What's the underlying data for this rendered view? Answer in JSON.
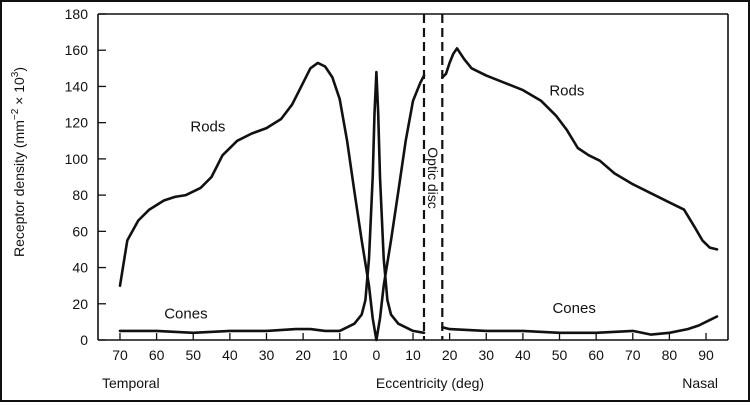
{
  "chart_data": {
    "type": "line",
    "ylabel_main": "Receptor density (mm",
    "ylabel_exp1": "−2",
    "ylabel_times": " × 10",
    "ylabel_exp2": "3",
    "ylabel_close": ")",
    "xlabel": "Eccentricity (deg)",
    "left_region_label": "Temporal",
    "right_region_label": "Nasal",
    "disc_label": "Optic disc",
    "ylim": [
      0,
      180
    ],
    "y_ticks": [
      0,
      20,
      40,
      60,
      80,
      100,
      120,
      140,
      160,
      180
    ],
    "x_ticks": [
      {
        "x": -70,
        "label": "70"
      },
      {
        "x": -60,
        "label": "60"
      },
      {
        "x": -50,
        "label": "50"
      },
      {
        "x": -40,
        "label": "40"
      },
      {
        "x": -30,
        "label": "30"
      },
      {
        "x": -20,
        "label": "20"
      },
      {
        "x": -10,
        "label": "10"
      },
      {
        "x": 0,
        "label": "0"
      },
      {
        "x": 10,
        "label": "10"
      },
      {
        "x": 20,
        "label": "20"
      },
      {
        "x": 30,
        "label": "30"
      },
      {
        "x": 40,
        "label": "40"
      },
      {
        "x": 50,
        "label": "50"
      },
      {
        "x": 60,
        "label": "60"
      },
      {
        "x": 70,
        "label": "70"
      },
      {
        "x": 80,
        "label": "80"
      },
      {
        "x": 90,
        "label": "90"
      }
    ],
    "xlim": [
      -76,
      96
    ],
    "optic_disc": [
      13,
      18
    ],
    "series": [
      {
        "name": "Rods",
        "label_positions": [
          [
            -46,
            115
          ],
          [
            52,
            135
          ]
        ],
        "segments": [
          [
            [
              -70,
              30
            ],
            [
              -68,
              55
            ],
            [
              -65,
              66
            ],
            [
              -62,
              72
            ],
            [
              -58,
              77
            ],
            [
              -55,
              79
            ],
            [
              -52,
              80
            ],
            [
              -48,
              84
            ],
            [
              -45,
              90
            ],
            [
              -42,
              102
            ],
            [
              -38,
              110
            ],
            [
              -34,
              114
            ],
            [
              -30,
              117
            ],
            [
              -26,
              122
            ],
            [
              -23,
              130
            ],
            [
              -20,
              142
            ],
            [
              -18,
              150
            ],
            [
              -16,
              153
            ],
            [
              -14,
              151
            ],
            [
              -12,
              145
            ],
            [
              -10,
              133
            ],
            [
              -8,
              110
            ],
            [
              -6,
              82
            ],
            [
              -4,
              55
            ],
            [
              -2,
              30
            ],
            [
              -1,
              12
            ],
            [
              0,
              0
            ],
            [
              1,
              12
            ],
            [
              2,
              30
            ],
            [
              4,
              55
            ],
            [
              6,
              82
            ],
            [
              8,
              110
            ],
            [
              10,
              132
            ],
            [
              12,
              142
            ],
            [
              13,
              146
            ]
          ],
          [
            [
              18,
              145
            ],
            [
              19,
              147
            ],
            [
              20,
              153
            ],
            [
              21,
              158
            ],
            [
              22,
              161
            ],
            [
              24,
              155
            ],
            [
              26,
              150
            ],
            [
              30,
              146
            ],
            [
              35,
              142
            ],
            [
              40,
              138
            ],
            [
              45,
              132
            ],
            [
              49,
              124
            ],
            [
              52,
              116
            ],
            [
              55,
              106
            ],
            [
              58,
              102
            ],
            [
              61,
              99
            ],
            [
              65,
              92
            ],
            [
              70,
              86
            ],
            [
              75,
              81
            ],
            [
              80,
              76
            ],
            [
              84,
              72
            ],
            [
              87,
              62
            ],
            [
              89,
              55
            ],
            [
              91,
              51
            ],
            [
              93,
              50
            ]
          ]
        ]
      },
      {
        "name": "Cones",
        "label_positions": [
          [
            -52,
            12
          ],
          [
            54,
            15
          ]
        ],
        "segments": [
          [
            [
              -70,
              5
            ],
            [
              -60,
              5
            ],
            [
              -50,
              4
            ],
            [
              -40,
              5
            ],
            [
              -30,
              5
            ],
            [
              -22,
              6
            ],
            [
              -18,
              6
            ],
            [
              -14,
              5
            ],
            [
              -10,
              5
            ],
            [
              -8,
              7
            ],
            [
              -6,
              9
            ],
            [
              -4,
              14
            ],
            [
              -3,
              22
            ],
            [
              -2,
              45
            ],
            [
              -1,
              90
            ],
            [
              -0.5,
              125
            ],
            [
              0,
              148
            ],
            [
              0.5,
              125
            ],
            [
              1,
              90
            ],
            [
              2,
              45
            ],
            [
              3,
              22
            ],
            [
              4,
              14
            ],
            [
              6,
              9
            ],
            [
              8,
              7
            ],
            [
              10,
              5
            ],
            [
              13,
              4
            ]
          ],
          [
            [
              18,
              7
            ],
            [
              20,
              6
            ],
            [
              30,
              5
            ],
            [
              40,
              5
            ],
            [
              50,
              4
            ],
            [
              60,
              4
            ],
            [
              70,
              5
            ],
            [
              75,
              3
            ],
            [
              80,
              4
            ],
            [
              85,
              6
            ],
            [
              88,
              8
            ],
            [
              91,
              11
            ],
            [
              93,
              13
            ]
          ]
        ]
      }
    ]
  }
}
